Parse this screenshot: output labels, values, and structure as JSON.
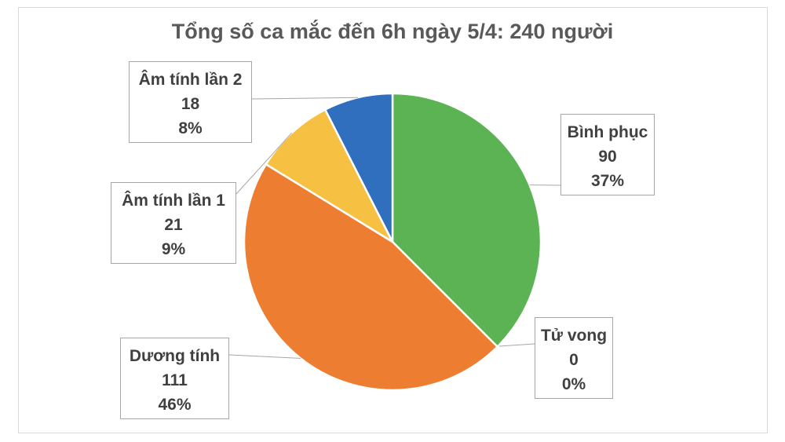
{
  "chart_data": {
    "type": "pie",
    "title": "Tổng số ca mắc đến 6h ngày 5/4: 240 người",
    "slices": [
      {
        "label": "Bình phục",
        "value": 90,
        "percent": "37%",
        "color": "#5cb353"
      },
      {
        "label": "Tử vong",
        "value": 0,
        "percent": "0%",
        "color": "#a5a5a5"
      },
      {
        "label": "Dương tính",
        "value": 111,
        "percent": "46%",
        "color": "#ed7d31"
      },
      {
        "label": "Âm tính lần 1",
        "value": 21,
        "percent": "9%",
        "color": "#f6c142"
      },
      {
        "label": "Âm tính lần 2",
        "value": 18,
        "percent": "8%",
        "color": "#2f6fbe"
      }
    ],
    "legend": "none",
    "data_labels": "callouts"
  }
}
